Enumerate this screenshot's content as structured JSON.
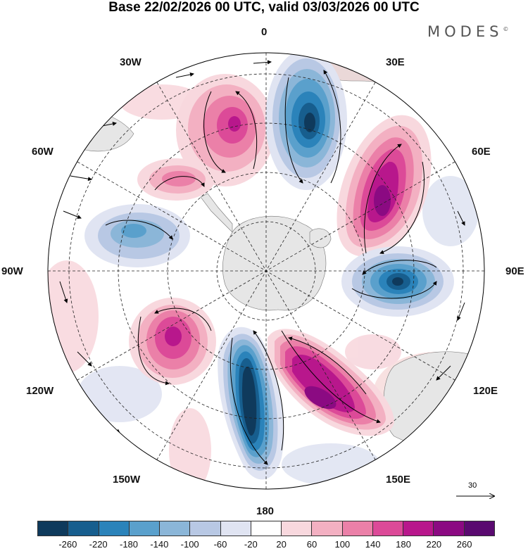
{
  "title": "Base 22/02/2026 00 UTC, valid 03/03/2026 00 UTC",
  "brand": "MODES",
  "brand_mark": "©",
  "map": {
    "projection": "south-polar-stereographic",
    "longitude_labels": {
      "top": "0",
      "top_right": "30E",
      "right_upper": "60E",
      "right": "90E",
      "right_lower": "120E",
      "bottom_right": "150E",
      "bottom": "180",
      "bottom_left": "150W",
      "left_lower": "120W",
      "left": "90W",
      "left_upper": "60W",
      "top_left": "30W"
    },
    "reference_vector": "30",
    "anomaly_centers": [
      {
        "name": "positive-30w",
        "value": 200
      },
      {
        "name": "negative-0",
        "value": -260
      },
      {
        "name": "positive-45e",
        "value": 240
      },
      {
        "name": "positive-60w",
        "value": 140
      },
      {
        "name": "negative-85w",
        "value": -140
      },
      {
        "name": "negative-90e",
        "value": -260
      },
      {
        "name": "positive-130w",
        "value": 200
      },
      {
        "name": "negative-170w",
        "value": -260
      },
      {
        "name": "positive-150e",
        "value": 240
      }
    ]
  },
  "colorbar": {
    "tick_labels": [
      "-260",
      "-220",
      "-180",
      "-140",
      "-100",
      "-60",
      "-20",
      "20",
      "60",
      "100",
      "140",
      "180",
      "220",
      "260"
    ],
    "colors": [
      "#0f3a5c",
      "#175e8e",
      "#2b83ba",
      "#5aa0cc",
      "#8bb6d8",
      "#b8c8e4",
      "#e0e4f2",
      "#ffffff",
      "#f8d8de",
      "#f3b0c2",
      "#eb80a8",
      "#dc4a98",
      "#b8178c",
      "#8b0a82",
      "#5a0a70"
    ]
  }
}
